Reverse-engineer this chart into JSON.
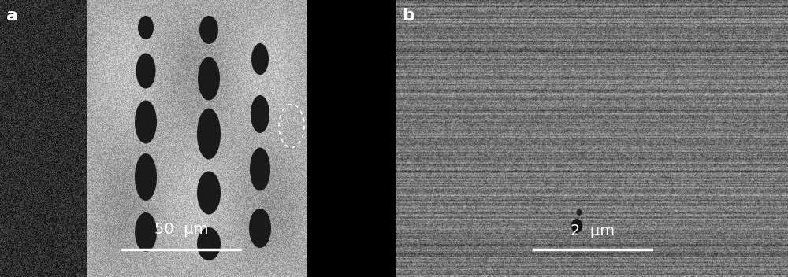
{
  "fig_width": 10.0,
  "fig_height": 3.52,
  "dpi": 100,
  "panel_a": {
    "label": "a",
    "label_color": "white",
    "label_fontsize": 16,
    "label_fontweight": "bold",
    "scalebar_text": "50  μm",
    "scalebar_color": "white",
    "scalebar_fontsize": 14,
    "bg_left": "#111111",
    "bg_mid": "#aaaaaa",
    "bg_right": "#000000"
  },
  "panel_b": {
    "label": "b",
    "label_color": "white",
    "label_fontsize": 16,
    "label_fontweight": "bold",
    "scalebar_text": "2  μm",
    "scalebar_color": "white",
    "scalebar_fontsize": 14,
    "bg_color": "#888888"
  }
}
